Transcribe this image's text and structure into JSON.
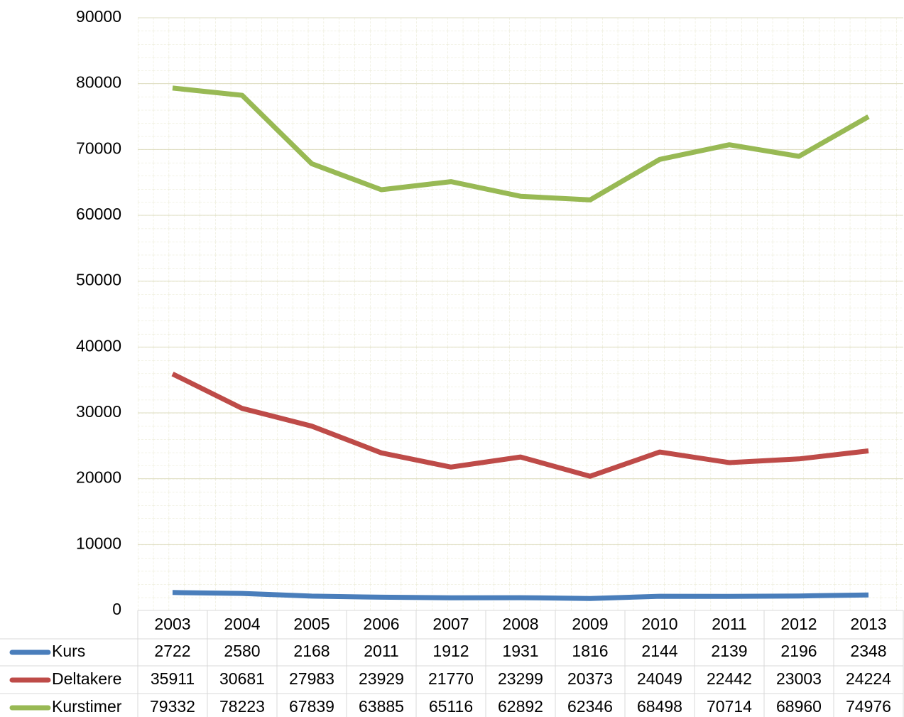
{
  "chart_data": {
    "type": "line",
    "categories": [
      "2003",
      "2004",
      "2005",
      "2006",
      "2007",
      "2008",
      "2009",
      "2010",
      "2011",
      "2012",
      "2013"
    ],
    "series": [
      {
        "name": "Kurs",
        "color": "#4a7ebb",
        "values": [
          2722,
          2580,
          2168,
          2011,
          1912,
          1931,
          1816,
          2144,
          2139,
          2196,
          2348
        ]
      },
      {
        "name": "Deltakere",
        "color": "#be4b48",
        "values": [
          35911,
          30681,
          27983,
          23929,
          21770,
          23299,
          20373,
          24049,
          22442,
          23003,
          24224
        ]
      },
      {
        "name": "Kurstimer",
        "color": "#98b954",
        "values": [
          79332,
          78223,
          67839,
          63885,
          65116,
          62892,
          62346,
          68498,
          70714,
          68960,
          74976
        ]
      }
    ],
    "ylim": [
      0,
      90000
    ],
    "yticks": [
      0,
      10000,
      20000,
      30000,
      40000,
      50000,
      60000,
      70000,
      80000,
      90000
    ],
    "grid": true
  }
}
